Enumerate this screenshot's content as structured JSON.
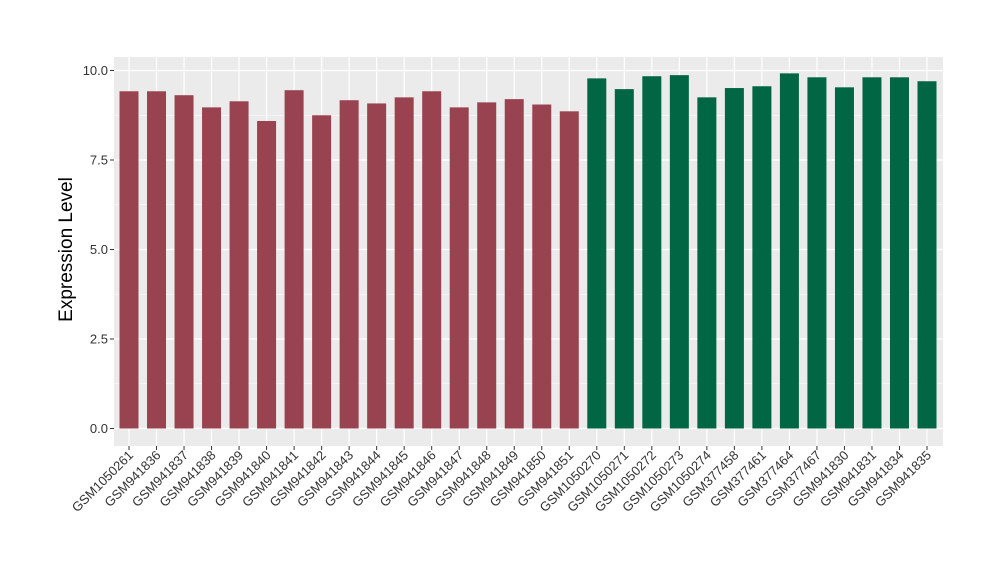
{
  "chart_data": {
    "type": "bar",
    "title": "",
    "xlabel": "",
    "ylabel": "Expression Level",
    "ylim": [
      0,
      10.5
    ],
    "yticks": [
      0.0,
      2.5,
      5.0,
      7.5,
      10.0
    ],
    "ytick_labels": [
      "0.0",
      "2.5",
      "5.0",
      "7.5",
      "10.0"
    ],
    "grid": true,
    "legend": "none",
    "categories": [
      "GSM1050261",
      "GSM941836",
      "GSM941837",
      "GSM941838",
      "GSM941839",
      "GSM941840",
      "GSM941841",
      "GSM941842",
      "GSM941843",
      "GSM941844",
      "GSM941845",
      "GSM941846",
      "GSM941847",
      "GSM941848",
      "GSM941849",
      "GSM941850",
      "GSM941851",
      "GSM1050270",
      "GSM1050271",
      "GSM1050272",
      "GSM1050273",
      "GSM1050274",
      "GSM377458",
      "GSM377461",
      "GSM377464",
      "GSM377467",
      "GSM941830",
      "GSM941831",
      "GSM941834",
      "GSM941835"
    ],
    "values": [
      9.42,
      9.42,
      9.31,
      8.97,
      9.14,
      8.59,
      9.45,
      8.75,
      9.17,
      9.08,
      9.25,
      9.42,
      8.97,
      9.11,
      9.2,
      9.05,
      8.86,
      9.78,
      9.48,
      9.84,
      9.87,
      9.25,
      9.51,
      9.56,
      9.92,
      9.81,
      9.53,
      9.81,
      9.81,
      9.7
    ],
    "group_colors": [
      "#9a4350",
      "#006644",
      "#006644"
    ],
    "bar_groups": [
      0,
      0,
      0,
      0,
      0,
      0,
      0,
      0,
      0,
      0,
      0,
      0,
      0,
      0,
      0,
      0,
      0,
      1,
      1,
      1,
      1,
      1,
      1,
      1,
      1,
      1,
      1,
      1,
      1,
      1
    ],
    "panel_background": "#ebebeb",
    "gridline_color": "#ffffff"
  }
}
